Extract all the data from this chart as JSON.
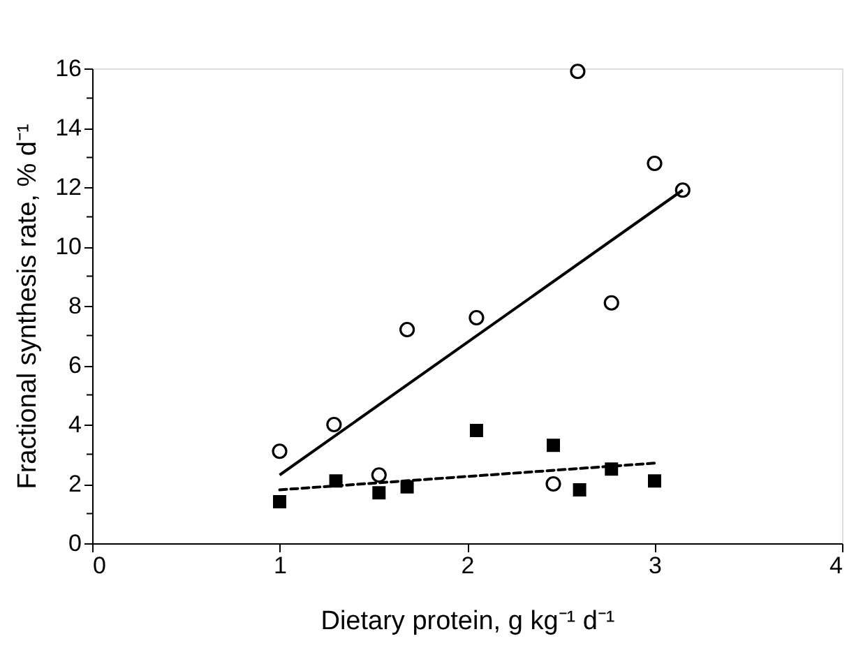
{
  "chart_data": {
    "type": "scatter",
    "xlabel": "Dietary protein, g kg⁻¹ d⁻¹",
    "ylabel": "Fractional synthesis rate, % d⁻¹",
    "series": [
      {
        "marker": "circle",
        "color": "#000000",
        "x": [
          1.0,
          1.29,
          1.53,
          1.68,
          2.05,
          2.59,
          3.0,
          3.15,
          2.77,
          2.46
        ],
        "values": [
          3.1,
          4.0,
          2.3,
          7.2,
          7.6,
          15.9,
          12.8,
          11.9,
          8.1,
          2.0
        ]
      },
      {
        "marker": "square",
        "color": "#000000",
        "x": [
          1.0,
          1.3,
          1.53,
          1.68,
          2.05,
          2.46,
          2.6,
          2.77,
          3.0
        ],
        "values": [
          1.4,
          2.1,
          1.7,
          1.9,
          3.8,
          3.3,
          1.8,
          2.5,
          2.1
        ]
      },
      {
        "type": "line",
        "line_style": "solid",
        "color": "#000000",
        "x": [
          1.0,
          3.15
        ],
        "values": [
          2.3,
          11.9
        ]
      },
      {
        "type": "line",
        "line_style": "dashed",
        "color": "#000000",
        "x": [
          1.0,
          3.0
        ],
        "values": [
          1.8,
          2.7
        ]
      }
    ],
    "xlim": [
      0,
      4
    ],
    "xticks": [
      0,
      1,
      2,
      3,
      4
    ],
    "ylim": [
      0,
      16
    ],
    "yticks": [
      0,
      {
        "value": 1,
        "label": null
      },
      2,
      {
        "value": 3,
        "label": null
      },
      4,
      {
        "value": 5,
        "label": null
      },
      6,
      {
        "value": 7,
        "label": null
      },
      8,
      {
        "value": 9,
        "label": null
      },
      10,
      {
        "value": 11,
        "label": null
      },
      12,
      {
        "value": 13,
        "label": null
      },
      14,
      {
        "value": 15,
        "label": null
      },
      16
    ],
    "grid": false
  }
}
